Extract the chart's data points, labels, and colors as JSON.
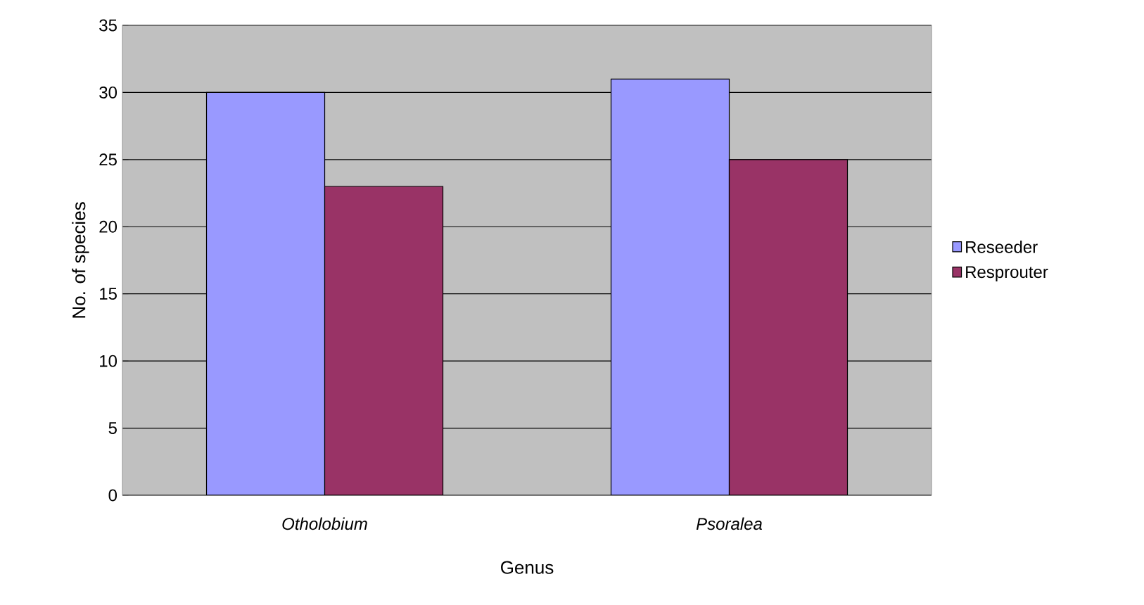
{
  "chart_data": {
    "type": "bar",
    "xlabel": "Genus",
    "ylabel": "No. of species",
    "categories": [
      "Otholobium",
      "Psoralea"
    ],
    "series": [
      {
        "name": "Reseeder",
        "color": "#9999ff",
        "values": [
          30,
          31
        ]
      },
      {
        "name": "Resprouter",
        "color": "#993366",
        "values": [
          23,
          25
        ]
      }
    ],
    "ylim": [
      0,
      35
    ],
    "yticks": [
      0,
      5,
      10,
      15,
      20,
      25,
      30,
      35
    ],
    "grid": "y",
    "legend": "right"
  }
}
